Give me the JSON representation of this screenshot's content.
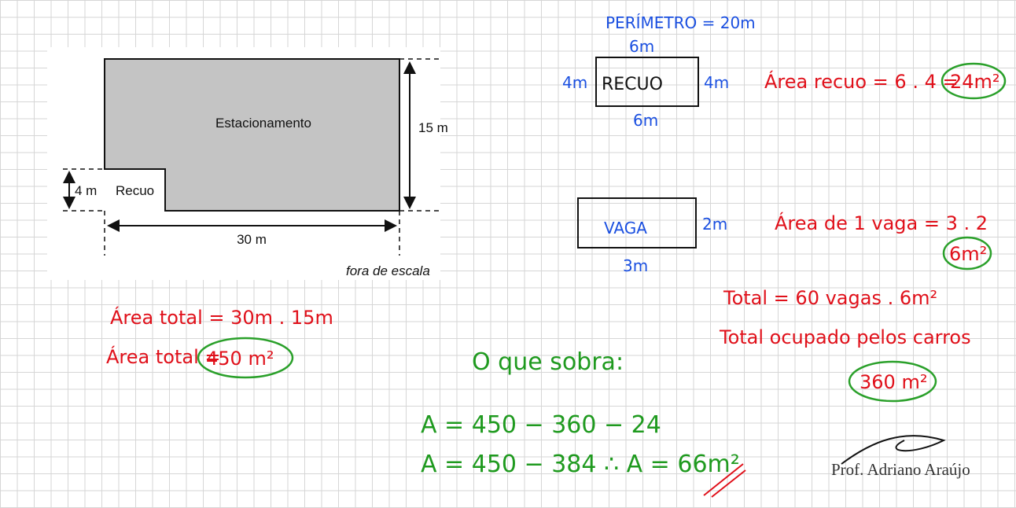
{
  "figure": {
    "title": "Estacionamento",
    "height": "15 m",
    "recuo_height": "4 m",
    "recuo": "Recuo",
    "width": "30 m",
    "note": "fora de escala"
  },
  "recuo_sketch": {
    "perimeter": "PERÍMETRO = 20m",
    "top": "6m",
    "left": "4m",
    "label": "RECUO",
    "right": "4m",
    "bottom": "6m"
  },
  "vaga_sketch": {
    "label": "VAGA",
    "right": "2m",
    "bottom": "3m"
  },
  "area_recuo": {
    "expression": "Área recuo = 6 . 4 =",
    "result": "24m²"
  },
  "area_vaga": {
    "expression": "Área de 1 vaga = 3 . 2",
    "result": "6m²"
  },
  "total_vagas": {
    "expression": "Total = 60 vagas . 6m²",
    "label": "Total ocupado pelos carros",
    "result": "360 m²"
  },
  "area_total": {
    "line1": "Área total = 30m . 15m",
    "line2": "Área total =",
    "result": "450 m²"
  },
  "remainder": {
    "heading": "O que sobra:",
    "line1": "A = 450 − 360 − 24",
    "line2": "A = 450 − 384 ∴ A = 66m²"
  },
  "signature": "Prof. Adriano Araújo"
}
